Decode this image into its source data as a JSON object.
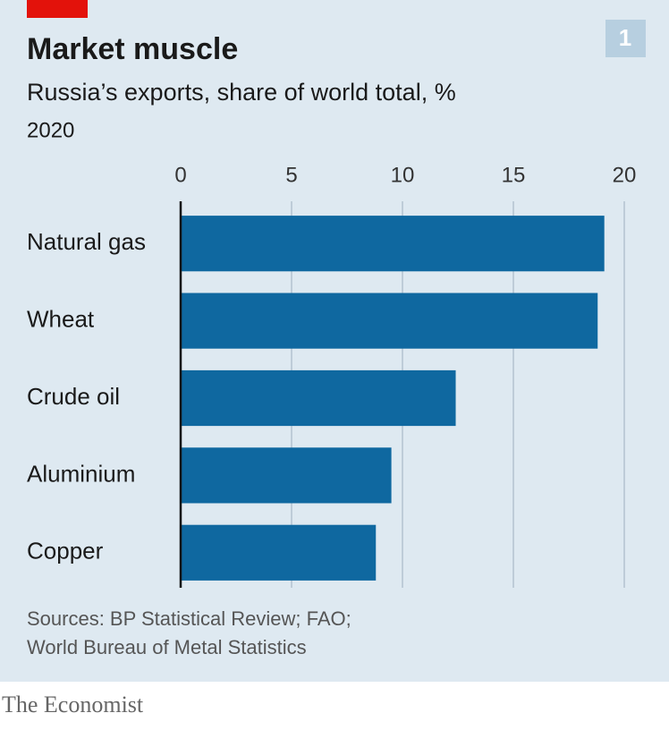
{
  "chart_data": {
    "type": "bar",
    "orientation": "horizontal",
    "title": "Market muscle",
    "subtitle": "Russia’s exports, share of world total, %",
    "period": "2020",
    "badge": "1",
    "categories": [
      "Natural gas",
      "Wheat",
      "Crude oil",
      "Aluminium",
      "Copper"
    ],
    "values": [
      19.1,
      18.8,
      12.4,
      9.5,
      8.8
    ],
    "color": "#0f68a0",
    "xlim": [
      0,
      20
    ],
    "xticks": [
      0,
      5,
      10,
      15,
      20
    ],
    "grid": true,
    "sources": [
      "Sources: BP Statistical Review; FAO;",
      "World Bureau of Metal Statistics"
    ],
    "brand": "The Economist"
  }
}
